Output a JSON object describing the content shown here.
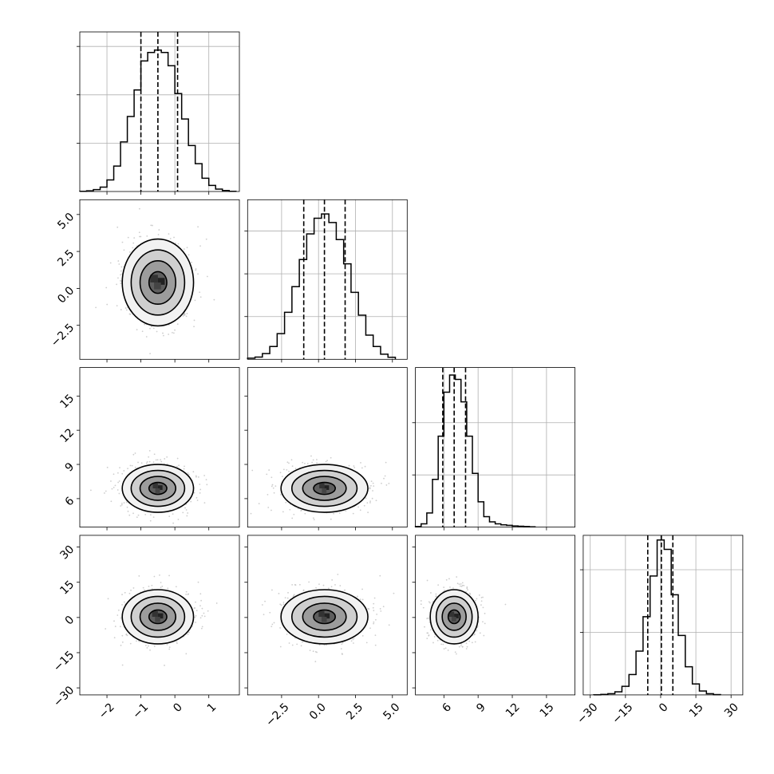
{
  "chart_data": {
    "type": "corner",
    "n_params": 4,
    "grid_lines": true,
    "colors": {
      "line": "#000000",
      "grid": "#b0b0b0",
      "scatter": "#bdbdbd",
      "density_dark": "#111111",
      "density_light": "#e0e0e0"
    },
    "params": [
      {
        "index": 0,
        "range": [
          -2.8,
          1.9
        ],
        "mean": -0.5,
        "sigma": 0.5,
        "quantiles": [
          -1.0,
          -0.5,
          0.08
        ],
        "ticks": [
          -2,
          -1,
          0,
          1
        ],
        "tick_labels": [
          "−2",
          "−1",
          "0",
          "1"
        ],
        "hist_edges": [
          -2.8,
          -2.6,
          -2.4,
          -2.2,
          -2.0,
          -1.8,
          -1.6,
          -1.4,
          -1.2,
          -1.0,
          -0.8,
          -0.6,
          -0.4,
          -0.2,
          0.0,
          0.2,
          0.4,
          0.6,
          0.8,
          1.0,
          1.2,
          1.4,
          1.6,
          1.8
        ],
        "hist_counts": [
          1,
          3,
          8,
          18,
          48,
          105,
          205,
          310,
          420,
          540,
          575,
          585,
          575,
          520,
          405,
          300,
          190,
          115,
          55,
          25,
          10,
          4,
          1
        ],
        "hist_max": 660,
        "hist_yticks": [
          200,
          400,
          600
        ]
      },
      {
        "index": 1,
        "range": [
          -4.8,
          6.0
        ],
        "mean": 0.4,
        "sigma": 1.4,
        "quantiles": [
          -1.0,
          0.4,
          1.8
        ],
        "ticks": [
          -2.5,
          0.0,
          2.5,
          5.0
        ],
        "tick_labels": [
          "−2.5",
          "0.0",
          "2.5",
          "5.0"
        ],
        "hist_edges": [
          -4.8,
          -4.3,
          -3.8,
          -3.3,
          -2.8,
          -2.3,
          -1.8,
          -1.3,
          -0.8,
          -0.3,
          0.2,
          0.7,
          1.2,
          1.7,
          2.2,
          2.7,
          3.2,
          3.7,
          4.2,
          4.7,
          5.2
        ],
        "hist_counts": [
          4,
          8,
          20,
          45,
          90,
          165,
          255,
          350,
          440,
          495,
          510,
          480,
          420,
          335,
          235,
          155,
          85,
          45,
          18,
          7
        ],
        "hist_max": 560,
        "hist_yticks": [
          150,
          300,
          450
        ]
      },
      {
        "index": 2,
        "range": [
          3.5,
          17.5
        ],
        "mean": 6.9,
        "sigma": 1.0,
        "quantiles": [
          5.9,
          6.9,
          7.9
        ],
        "ticks": [
          6,
          9,
          12,
          15
        ],
        "tick_labels": [
          "6",
          "9",
          "12",
          "15"
        ],
        "hist_edges": [
          3.5,
          4.0,
          4.5,
          5.0,
          5.5,
          6.0,
          6.5,
          7.0,
          7.5,
          8.0,
          8.5,
          9.0,
          9.5,
          10.0,
          10.5,
          11.0,
          11.5,
          12.0,
          12.5,
          13.0,
          13.5,
          14.0
        ],
        "hist_counts": [
          4,
          22,
          95,
          320,
          610,
          905,
          1020,
          990,
          840,
          610,
          360,
          170,
          70,
          35,
          22,
          15,
          12,
          8,
          6,
          4,
          2
        ],
        "hist_max": 1070,
        "hist_yticks": [
          350,
          700
        ]
      },
      {
        "index": 3,
        "range": [
          -33,
          35
        ],
        "mean": 0.3,
        "sigma": 5.5,
        "quantiles": [
          -5.5,
          0.3,
          5.2
        ],
        "ticks": [
          -30,
          -15,
          0,
          15,
          30
        ],
        "tick_labels": [
          "−30",
          "−15",
          "0",
          "15",
          "30"
        ],
        "hist_edges": [
          -28.5,
          -25.5,
          -22.5,
          -19.5,
          -16.5,
          -13.5,
          -10.5,
          -7.5,
          -4.5,
          -1.5,
          1.5,
          4.5,
          7.5,
          10.5,
          13.5,
          16.5,
          19.5,
          22.5,
          25.5
        ],
        "hist_counts": [
          1,
          3,
          8,
          20,
          55,
          130,
          280,
          500,
          760,
          990,
          930,
          640,
          380,
          180,
          70,
          25,
          8,
          2
        ],
        "hist_max": 1020,
        "hist_yticks": [
          400,
          800
        ]
      }
    ],
    "panels_2d": [
      {
        "x": 0,
        "y": 1
      },
      {
        "x": 0,
        "y": 2
      },
      {
        "x": 1,
        "y": 2
      },
      {
        "x": 0,
        "y": 3
      },
      {
        "x": 1,
        "y": 3
      },
      {
        "x": 2,
        "y": 3
      }
    ],
    "contour_levels_sigma": [
      0.5,
      1.0,
      1.5,
      2.0
    ]
  }
}
